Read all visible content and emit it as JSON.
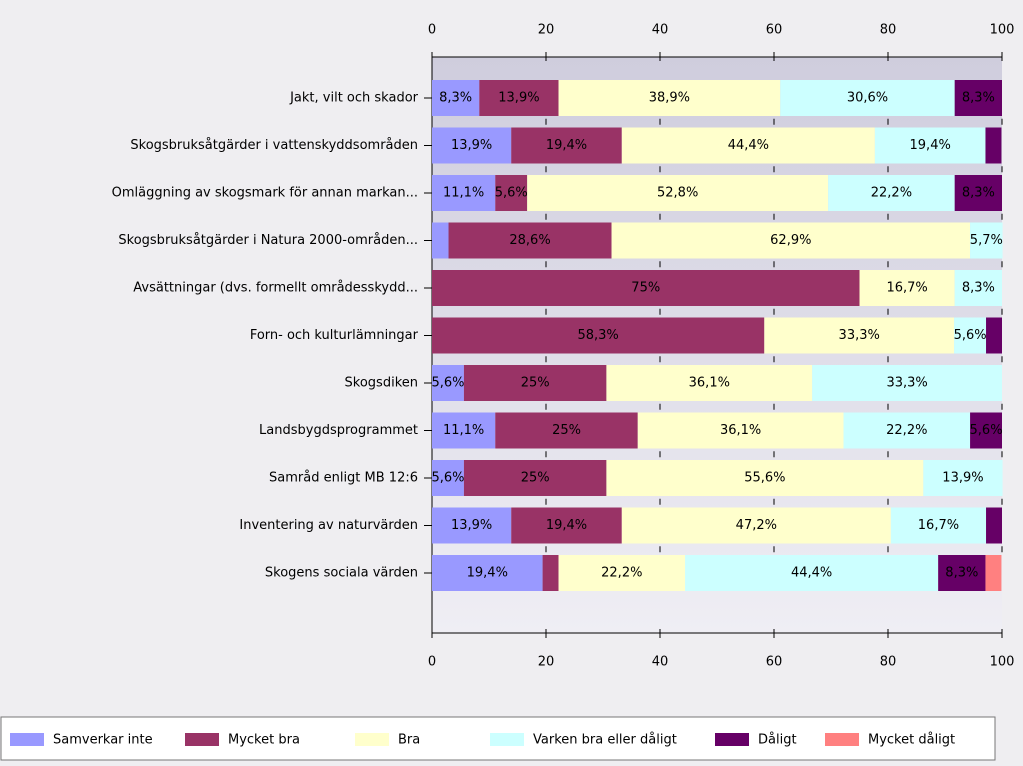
{
  "chart_data": {
    "type": "stacked-bar-horizontal",
    "categories": [
      "Jakt, vilt och skador",
      "Skogsbruksåtgärder i vattenskyddsområden",
      "Omläggning av skogsmark för annan markan...",
      "Skogsbruksåtgärder i Natura 2000-områden...",
      "Avsättningar (dvs. formellt områdesskydd...",
      "Forn- och kulturlämningar",
      "Skogsdiken",
      "Landsbygdsprogrammet",
      "Samråd enligt MB 12:6",
      "Inventering av naturvärden",
      "Skogens sociala värden"
    ],
    "series": [
      {
        "name": "Samverkar inte",
        "color": "#9999ff",
        "values": [
          8.3,
          13.9,
          11.1,
          2.9,
          null,
          null,
          5.6,
          11.1,
          5.6,
          13.9,
          19.4
        ],
        "value_labels": [
          "8,3%",
          "13,9%",
          "11,1%",
          null,
          null,
          null,
          "5,6%",
          "11,1%",
          "5,6%",
          "13,9%",
          "19,4%"
        ]
      },
      {
        "name": "Mycket bra",
        "color": "#993366",
        "values": [
          13.9,
          19.4,
          5.6,
          28.6,
          75,
          58.3,
          25,
          25,
          25,
          19.4,
          2.8
        ],
        "value_labels": [
          "13,9%",
          "19,4%",
          "5,6%",
          "28,6%",
          "75%",
          "58,3%",
          "25%",
          "25%",
          "25%",
          "19,4%",
          null
        ]
      },
      {
        "name": "Bra",
        "color": "#ffffcc",
        "values": [
          38.9,
          44.4,
          52.8,
          62.9,
          16.7,
          33.3,
          36.1,
          36.1,
          55.6,
          47.2,
          22.2
        ],
        "value_labels": [
          "38,9%",
          "44,4%",
          "52,8%",
          "62,9%",
          "16,7%",
          "33,3%",
          "36,1%",
          "36,1%",
          "55,6%",
          "47,2%",
          "22,2%"
        ]
      },
      {
        "name": "Varken bra eller dåligt",
        "color": "#ccffff",
        "values": [
          30.6,
          19.4,
          22.2,
          5.7,
          8.3,
          5.6,
          33.3,
          22.2,
          13.9,
          16.7,
          44.4
        ],
        "value_labels": [
          "30,6%",
          "19,4%",
          "22,2%",
          "5,7%",
          "8,3%",
          "5,6%",
          "33,3%",
          "22,2%",
          "13,9%",
          "16,7%",
          "44,4%"
        ]
      },
      {
        "name": "Dåligt",
        "color": "#660066",
        "values": [
          8.3,
          2.8,
          8.3,
          null,
          null,
          2.8,
          null,
          5.6,
          null,
          2.8,
          8.3
        ],
        "value_labels": [
          "8,3%",
          null,
          "8,3%",
          null,
          null,
          null,
          null,
          "5,6%",
          null,
          null,
          "8,3%"
        ]
      },
      {
        "name": "Mycket dåligt",
        "color": "#ff8080",
        "values": [
          null,
          null,
          null,
          null,
          null,
          null,
          null,
          null,
          null,
          null,
          2.8
        ],
        "value_labels": [
          null,
          null,
          null,
          null,
          null,
          null,
          null,
          null,
          null,
          null,
          null
        ]
      }
    ],
    "xlim": [
      0,
      100
    ],
    "xticks": [
      0,
      20,
      40,
      60,
      80,
      100
    ]
  }
}
